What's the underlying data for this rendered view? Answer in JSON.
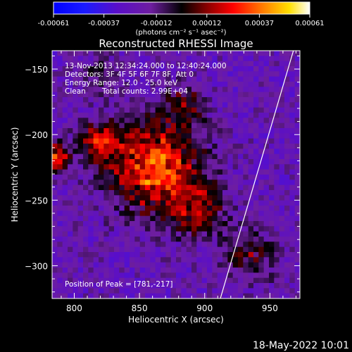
{
  "chart_data": {
    "type": "heatmap",
    "title": "Reconstructed RHESSI Image",
    "xlabel": "Heliocentric X (arcsec)",
    "ylabel": "Heliocentric Y (arcsec)",
    "xlim": [
      783,
      973
    ],
    "ylim": [
      -325,
      -136
    ],
    "x_ticks": [
      "800",
      "850",
      "900",
      "950"
    ],
    "y_ticks": [
      "-150",
      "-200",
      "-250",
      "-300"
    ],
    "colorbar": {
      "ticks": [
        "-0.00061",
        "-0.00037",
        "-0.00012",
        "0.00012",
        "0.00037",
        "0.00061"
      ],
      "units": "(photons cm⁻² s⁻¹ asec⁻²)",
      "range": [
        -0.00061,
        0.00061
      ]
    },
    "info": {
      "time": "13-Nov-2013 12:34:24.000 to 12:40:24.000",
      "detectors": "Detectors: 3F 4F 5F 6F 7F 8F, Att 0",
      "energy": "Energy Range: 12.0 - 25.0 keV",
      "method": "Clean",
      "counts": "Total counts: 2.99E+04",
      "peak": "Position of Peak = [781,-217]"
    },
    "peak": [
      781,
      -217
    ],
    "emission_sources": [
      {
        "x": 862,
        "y": -225,
        "sigma": 24,
        "amplitude": 0.00055
      },
      {
        "x": 895,
        "y": -258,
        "sigma": 14,
        "amplitude": 0.0003
      },
      {
        "x": 820,
        "y": -205,
        "sigma": 11,
        "amplitude": 0.00038
      },
      {
        "x": 786,
        "y": -217,
        "sigma": 7,
        "amplitude": 0.00052
      },
      {
        "x": 935,
        "y": -292,
        "sigma": 14,
        "amplitude": 0.00025
      },
      {
        "x": 885,
        "y": -178,
        "sigma": 11,
        "amplitude": 0.00025
      },
      {
        "x": 820,
        "y": -155,
        "sigma": 9,
        "amplitude": 0.00018
      }
    ],
    "limb_line": {
      "x": [
        912,
        968
      ],
      "y": [
        -325,
        -136
      ]
    }
  },
  "footer": {
    "date": "18-May-2022 10:01"
  }
}
